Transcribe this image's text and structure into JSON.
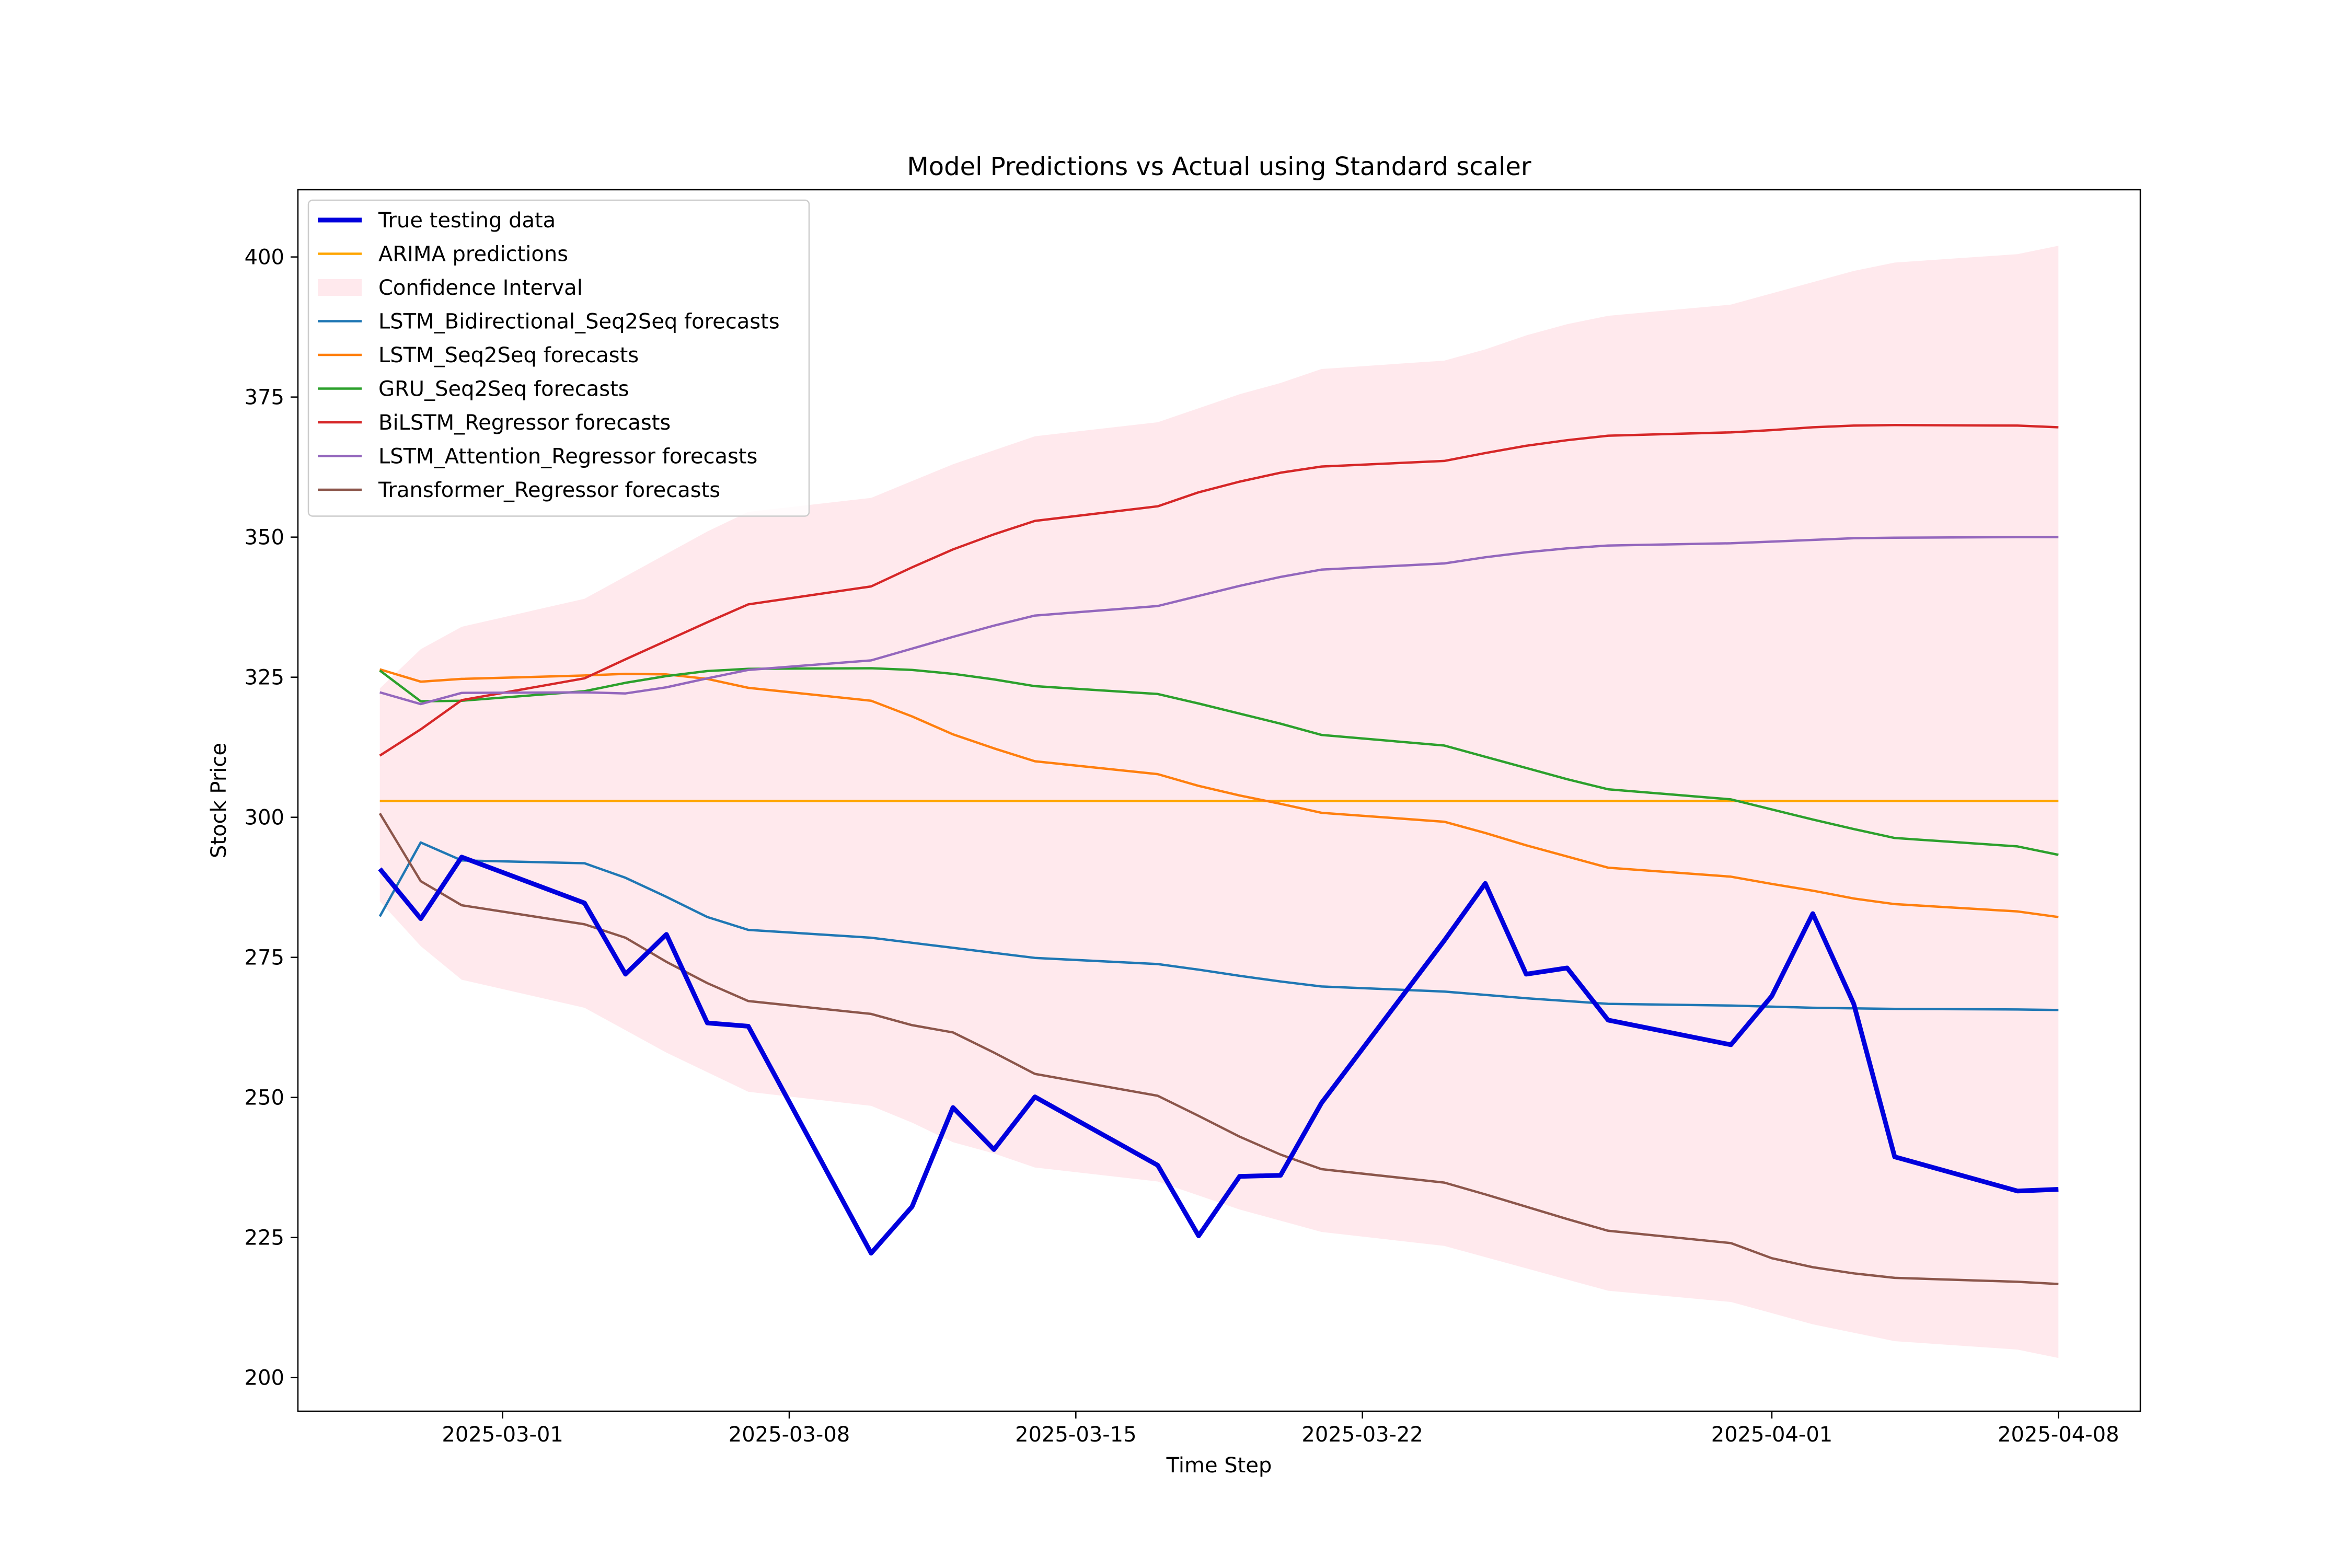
{
  "chart_data": {
    "type": "line",
    "title": "Model Predictions vs Actual using Standard scaler",
    "xlabel": "Time Step",
    "ylabel": "Stock Price",
    "xlim": [
      "2025-02-24",
      "2025-04-10"
    ],
    "ylim": [
      194,
      412
    ],
    "x_ticks": [
      "2025-03-01",
      "2025-03-08",
      "2025-03-15",
      "2025-03-22",
      "2025-04-01",
      "2025-04-08"
    ],
    "y_ticks": [
      200,
      225,
      250,
      275,
      300,
      325,
      350,
      375,
      400
    ],
    "grid": false,
    "legend_position": "top-left",
    "x": [
      "2025-02-26",
      "2025-02-27",
      "2025-02-28",
      "2025-03-03",
      "2025-03-04",
      "2025-03-05",
      "2025-03-06",
      "2025-03-07",
      "2025-03-10",
      "2025-03-11",
      "2025-03-12",
      "2025-03-13",
      "2025-03-14",
      "2025-03-17",
      "2025-03-18",
      "2025-03-19",
      "2025-03-20",
      "2025-03-21",
      "2025-03-24",
      "2025-03-25",
      "2025-03-26",
      "2025-03-27",
      "2025-03-28",
      "2025-03-31",
      "2025-04-01",
      "2025-04-02",
      "2025-04-03",
      "2025-04-04",
      "2025-04-07",
      "2025-04-08"
    ],
    "confidence_interval": {
      "name": "Confidence Interval",
      "color": "#ffc0cb",
      "lower": [
        285,
        277,
        271,
        266,
        262,
        258,
        254.5,
        251,
        248.5,
        245.5,
        242,
        240,
        237.5,
        235,
        232.5,
        230,
        228,
        226,
        223.5,
        221.5,
        219.5,
        217.5,
        215.5,
        213.5,
        211.5,
        209.5,
        208,
        206.5,
        205,
        203.5
      ],
      "upper": [
        323,
        330,
        334,
        339,
        343,
        347,
        351,
        354.5,
        357,
        360,
        363,
        365.5,
        368,
        370.5,
        373,
        375.5,
        377.5,
        380,
        381.5,
        383.5,
        386,
        388,
        389.5,
        391.5,
        393.5,
        395.5,
        397.5,
        399,
        400.5,
        402
      ]
    },
    "series": [
      {
        "name": "True testing data",
        "color": "#0000dd",
        "width": 2.0,
        "values": [
          290.8,
          281.9,
          292.9,
          284.7,
          272.0,
          279.1,
          263.3,
          262.7,
          222.2,
          230.5,
          248.2,
          240.7,
          250.1,
          237.9,
          225.3,
          235.9,
          236.1,
          249.0,
          278.0,
          288.2,
          272.0,
          273.1,
          263.8,
          259.4,
          268.1,
          282.8,
          266.7,
          239.4,
          233.3,
          233.6
        ]
      },
      {
        "name": "ARIMA predictions",
        "color": "#ffa500",
        "width": 1.0,
        "values": [
          302.9,
          302.9,
          302.9,
          302.9,
          302.9,
          302.9,
          302.9,
          302.9,
          302.9,
          302.9,
          302.9,
          302.9,
          302.9,
          302.9,
          302.9,
          302.9,
          302.9,
          302.9,
          302.9,
          302.9,
          302.9,
          302.9,
          302.9,
          302.9,
          302.9,
          302.9,
          302.9,
          302.9,
          302.9,
          302.9
        ]
      },
      {
        "name": "LSTM_Bidirectional_Seq2Seq forecasts",
        "color": "#1f77b4",
        "width": 1.0,
        "values": [
          282.3,
          295.5,
          292.3,
          291.8,
          289.2,
          285.8,
          282.2,
          279.9,
          278.5,
          277.6,
          276.7,
          275.8,
          274.9,
          273.8,
          272.8,
          271.7,
          270.7,
          269.8,
          268.9,
          268.3,
          267.7,
          267.2,
          266.7,
          266.4,
          266.2,
          266.0,
          265.9,
          265.8,
          265.7,
          265.6
        ]
      },
      {
        "name": "LSTM_Seq2Seq forecasts",
        "color": "#ff7f0e",
        "width": 1.0,
        "values": [
          326.4,
          324.2,
          324.7,
          325.3,
          325.6,
          325.5,
          324.7,
          323.1,
          320.8,
          318.0,
          314.8,
          312.3,
          310.0,
          307.7,
          305.6,
          303.9,
          302.4,
          300.8,
          299.2,
          297.2,
          295.0,
          293.0,
          291.0,
          289.4,
          288.1,
          286.9,
          285.5,
          284.5,
          283.2,
          282.2
        ]
      },
      {
        "name": "GRU_Seq2Seq forecasts",
        "color": "#2ca02c",
        "width": 1.0,
        "values": [
          326.2,
          320.7,
          320.8,
          322.5,
          324.0,
          325.2,
          326.1,
          326.5,
          326.6,
          326.3,
          325.6,
          324.6,
          323.4,
          322.0,
          320.3,
          318.5,
          316.7,
          314.7,
          312.8,
          310.8,
          308.8,
          306.8,
          305.0,
          303.2,
          301.4,
          299.6,
          297.9,
          296.3,
          294.8,
          293.3
        ]
      },
      {
        "name": "BiLSTM_Regressor forecasts",
        "color": "#d62728",
        "width": 1.0,
        "values": [
          311.0,
          315.7,
          320.9,
          324.8,
          328.2,
          331.5,
          334.8,
          338.0,
          341.2,
          344.6,
          347.8,
          350.5,
          352.9,
          355.5,
          358.0,
          359.9,
          361.5,
          362.6,
          363.6,
          365.0,
          366.3,
          367.3,
          368.1,
          368.7,
          369.1,
          369.6,
          369.9,
          370.0,
          369.9,
          369.6
        ]
      },
      {
        "name": "LSTM_Attention_Regressor forecasts",
        "color": "#9467bd",
        "width": 1.0,
        "values": [
          322.3,
          320.2,
          322.2,
          322.3,
          322.1,
          323.2,
          324.8,
          326.3,
          328.0,
          330.1,
          332.2,
          334.2,
          336.0,
          337.7,
          339.5,
          341.3,
          342.9,
          344.2,
          345.3,
          346.4,
          347.3,
          348.0,
          348.5,
          348.9,
          349.2,
          349.5,
          349.8,
          349.9,
          350.0,
          350.0
        ]
      },
      {
        "name": "Transformer_Regressor forecasts",
        "color": "#8c564b",
        "width": 1.0,
        "values": [
          300.7,
          288.6,
          284.3,
          280.9,
          278.5,
          274.2,
          270.4,
          267.2,
          264.9,
          262.9,
          261.6,
          258.0,
          254.2,
          250.3,
          246.7,
          243.0,
          239.8,
          237.2,
          234.8,
          232.7,
          230.5,
          228.3,
          226.2,
          224.0,
          221.3,
          219.7,
          218.6,
          217.8,
          217.1,
          216.7
        ]
      }
    ]
  }
}
